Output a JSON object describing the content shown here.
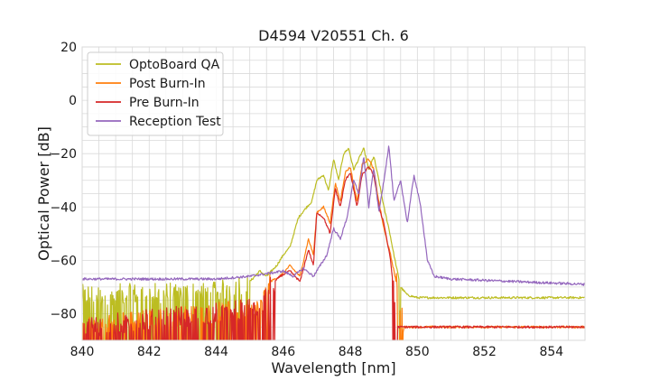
{
  "chart_data": {
    "type": "line",
    "title": "D4594 V20551 Ch. 6",
    "xlabel": "Wavelength [nm]",
    "ylabel": "Optical Power [dB]",
    "xlim": [
      840,
      855
    ],
    "ylim": [
      -90,
      20
    ],
    "xticks": [
      840,
      842,
      844,
      846,
      848,
      850,
      852,
      854
    ],
    "yticks": [
      20,
      0,
      -20,
      -40,
      -60,
      -80
    ],
    "ytick_labels": [
      "20",
      "0",
      "−20",
      "−40",
      "−60",
      "−80"
    ],
    "grid": true,
    "legend_position": "top-left",
    "series": [
      {
        "name": "OptoBoard QA",
        "color": "#bcbd22",
        "noise_floor_range": [
          840,
          849.5
        ],
        "x": [
          840,
          844.0,
          845.0,
          845.3,
          845.5,
          845.8,
          846.0,
          846.2,
          846.45,
          846.7,
          846.85,
          847.0,
          847.2,
          847.35,
          847.5,
          847.65,
          847.8,
          847.95,
          848.1,
          848.25,
          848.4,
          848.55,
          848.7,
          848.85,
          849.0,
          849.15,
          849.3,
          849.5,
          849.7,
          850.0,
          855
        ],
        "y": [
          -73,
          -72,
          -68,
          -64,
          -66,
          -62,
          -58,
          -55,
          -44,
          -40,
          -38,
          -30,
          -28,
          -34,
          -22,
          -30,
          -20,
          -18,
          -26,
          -22,
          -18,
          -26,
          -21,
          -30,
          -40,
          -48,
          -58,
          -70,
          -73,
          -74,
          -74
        ]
      },
      {
        "name": "Post Burn-In",
        "color": "#ff7f0e",
        "noise_floor_range": [
          840,
          849.6
        ],
        "x": [
          840,
          845.3,
          845.6,
          845.9,
          846.2,
          846.5,
          846.75,
          846.9,
          847.0,
          847.2,
          847.4,
          847.55,
          847.7,
          847.85,
          848.0,
          848.2,
          848.35,
          848.55,
          848.7,
          848.85,
          849.0,
          849.2,
          849.4,
          849.6,
          855
        ],
        "y": [
          -85,
          -78,
          -68,
          -66,
          -62,
          -66,
          -52,
          -58,
          -42,
          -40,
          -46,
          -31,
          -38,
          -27,
          -25,
          -38,
          -24,
          -22,
          -26,
          -38,
          -48,
          -58,
          -70,
          -85,
          -85
        ]
      },
      {
        "name": "Pre Burn-In",
        "color": "#d62728",
        "noise_floor_range": [
          840,
          849.4
        ],
        "x": [
          840,
          845.3,
          845.6,
          845.9,
          846.2,
          846.5,
          846.75,
          846.9,
          847.0,
          847.2,
          847.4,
          847.55,
          847.7,
          847.85,
          848.0,
          848.2,
          848.35,
          848.55,
          848.7,
          848.85,
          849.0,
          849.2,
          849.4,
          855
        ],
        "y": [
          -85,
          -78,
          -70,
          -66,
          -64,
          -68,
          -56,
          -62,
          -42,
          -44,
          -50,
          -33,
          -40,
          -30,
          -27,
          -40,
          -28,
          -25,
          -28,
          -40,
          -46,
          -60,
          -85,
          -85
        ]
      },
      {
        "name": "Reception Test",
        "color": "#9467bd",
        "x": [
          840,
          842,
          844,
          845.0,
          845.5,
          846.0,
          846.3,
          846.6,
          846.9,
          847.1,
          847.3,
          847.5,
          847.7,
          847.9,
          848.1,
          848.25,
          848.4,
          848.55,
          848.7,
          848.85,
          849.0,
          849.15,
          849.3,
          849.5,
          849.7,
          849.9,
          850.1,
          850.3,
          850.5,
          851,
          853,
          855
        ],
        "y": [
          -67,
          -67,
          -67,
          -66,
          -65,
          -64,
          -66,
          -63,
          -66,
          -62,
          -58,
          -48,
          -52,
          -44,
          -30,
          -35,
          -21,
          -40,
          -25,
          -42,
          -30,
          -17,
          -38,
          -30,
          -46,
          -28,
          -40,
          -60,
          -66,
          -67,
          -68,
          -69
        ]
      }
    ]
  }
}
